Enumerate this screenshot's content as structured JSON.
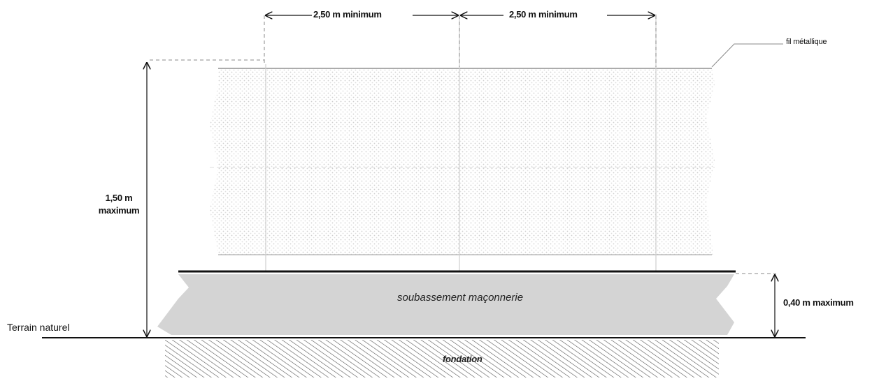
{
  "labels": {
    "span_left": "2,50 m minimum",
    "span_right": "2,50 m minimum",
    "wire": "fil métallique",
    "height_value": "1,50 m",
    "height_qualifier": "maximum",
    "base_height": "0,40 m maximum",
    "ground": "Terrain naturel",
    "base": "soubassement maçonnerie",
    "foundation": "fondation"
  },
  "colors": {
    "ink": "#111111",
    "mesh": "#c8c8c8",
    "base_fill": "#d3d3d3",
    "hatch": "#6a6a6a"
  }
}
